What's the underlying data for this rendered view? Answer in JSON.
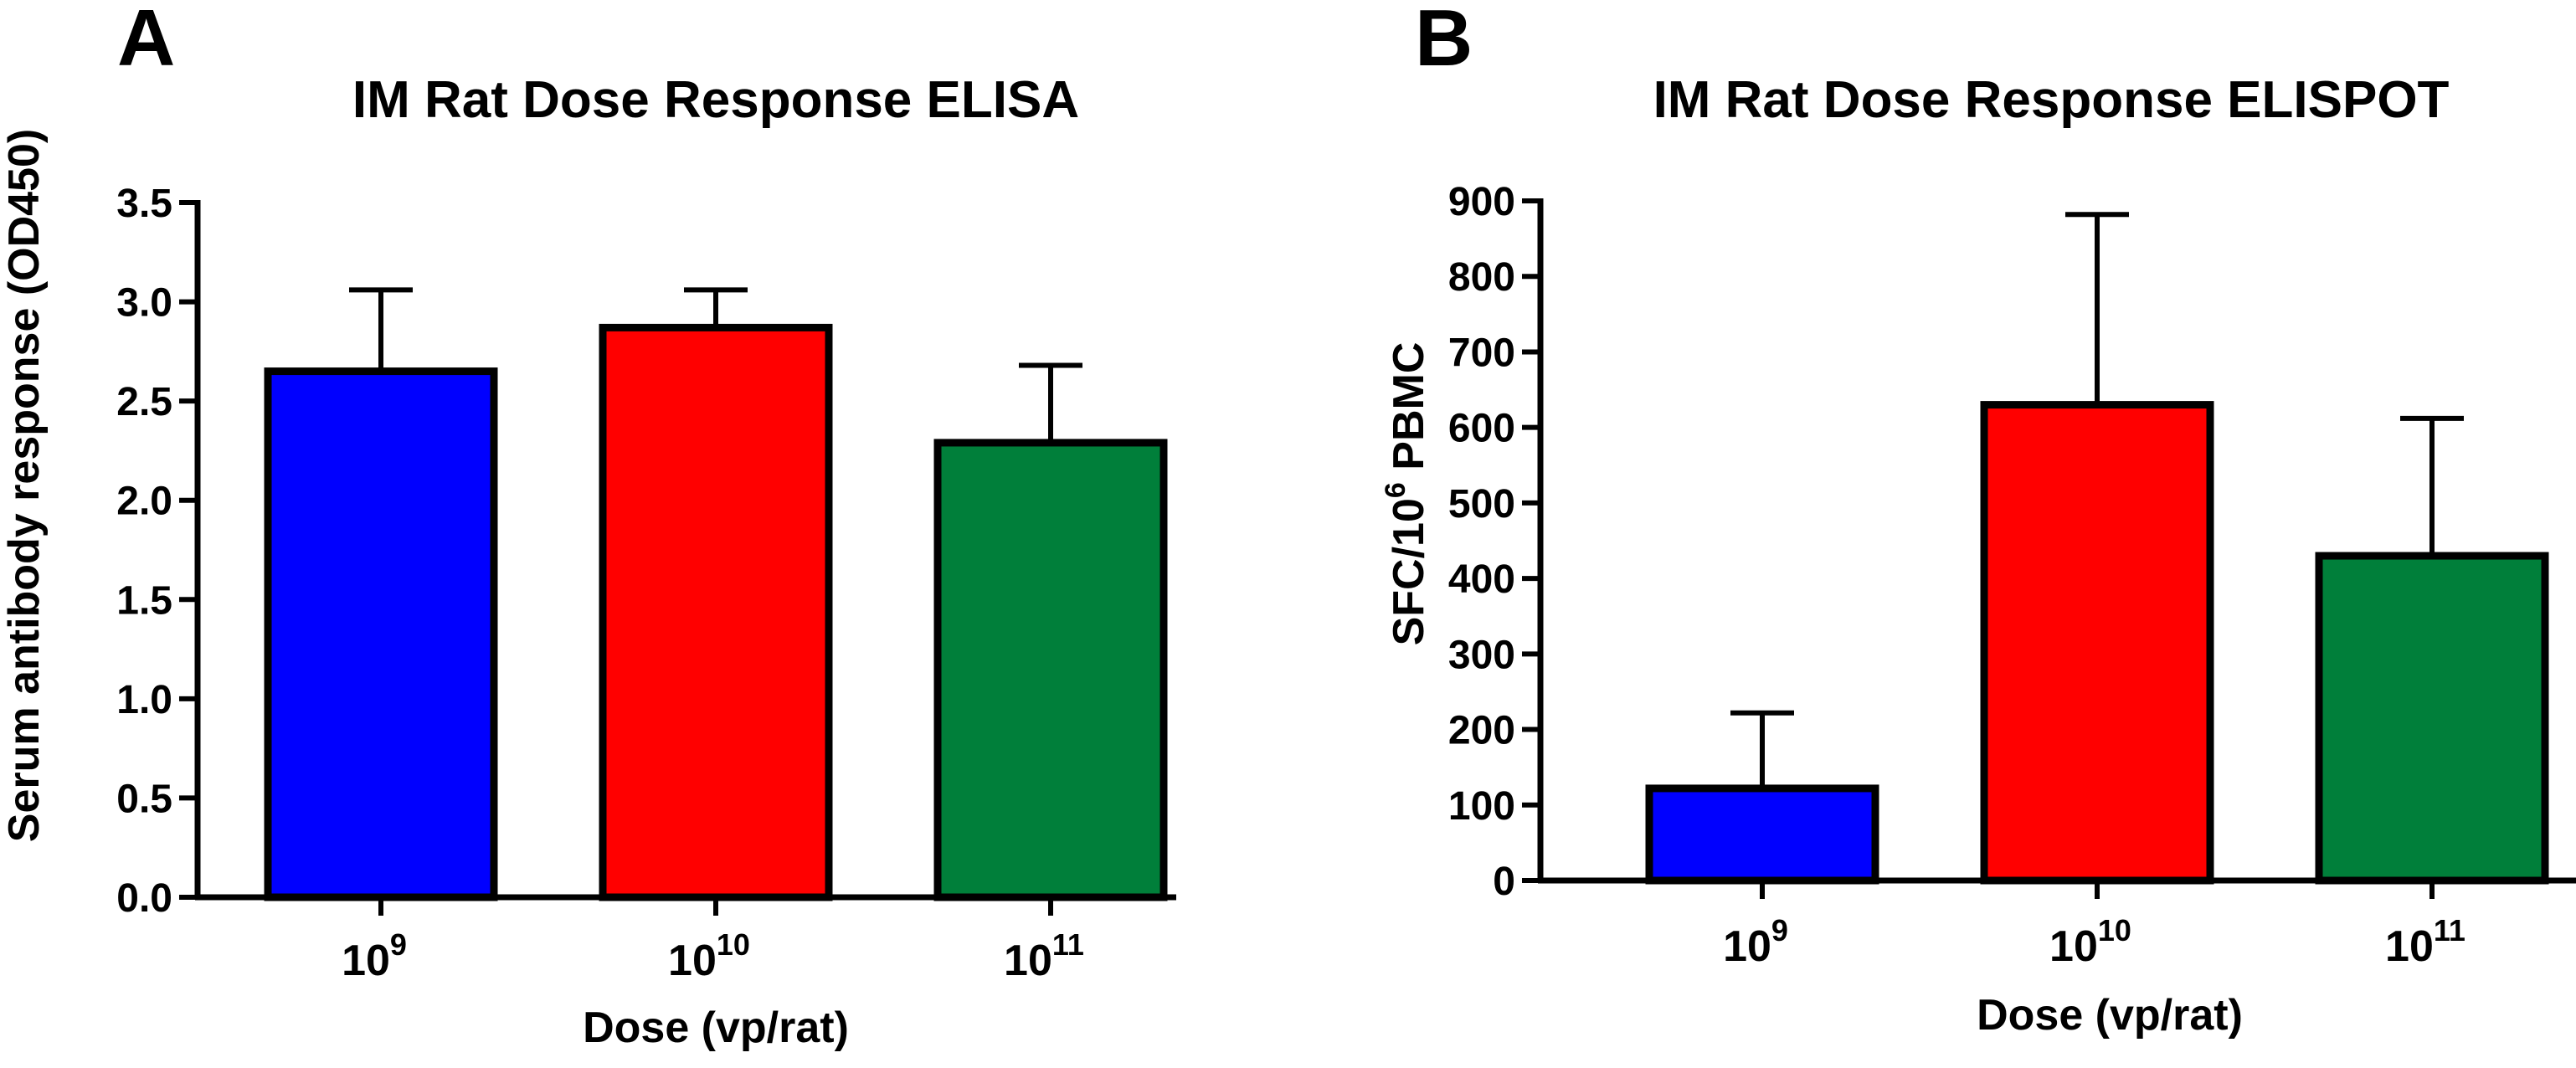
{
  "chart_data": [
    {
      "panel": "A",
      "type": "bar",
      "title": "IM Rat Dose Response ELISA",
      "xlabel": "Dose (vp/rat)",
      "ylabel": "Serum antibody response (OD450)",
      "ylim": [
        0,
        3.5
      ],
      "yticks": [
        "0.0",
        "0.5",
        "1.0",
        "1.5",
        "2.0",
        "2.5",
        "3.0",
        "3.5"
      ],
      "categories": [
        {
          "base": "10",
          "exp": "9"
        },
        {
          "base": "10",
          "exp": "10"
        },
        {
          "base": "10",
          "exp": "11"
        }
      ],
      "values": [
        2.65,
        2.87,
        2.29
      ],
      "error_upper": [
        3.06,
        3.06,
        2.68
      ],
      "colors": [
        "#0000ff",
        "#ff0000",
        "#007f3a"
      ]
    },
    {
      "panel": "B",
      "type": "bar",
      "title": "IM Rat Dose  Response ELISPOT",
      "xlabel": "Dose (vp/rat)",
      "ylabel": {
        "pre": "SFC/10",
        "sup": "6",
        "post": " PBMC"
      },
      "ylim": [
        0,
        900
      ],
      "yticks": [
        "0",
        "100",
        "200",
        "300",
        "400",
        "500",
        "600",
        "700",
        "800",
        "900"
      ],
      "categories": [
        {
          "base": "10",
          "exp": "9"
        },
        {
          "base": "10",
          "exp": "10"
        },
        {
          "base": "10",
          "exp": "11"
        }
      ],
      "values": [
        122,
        630,
        430
      ],
      "error_upper": [
        222,
        882,
        612
      ],
      "colors": [
        "#0000ff",
        "#ff0000",
        "#007f3a"
      ]
    }
  ]
}
